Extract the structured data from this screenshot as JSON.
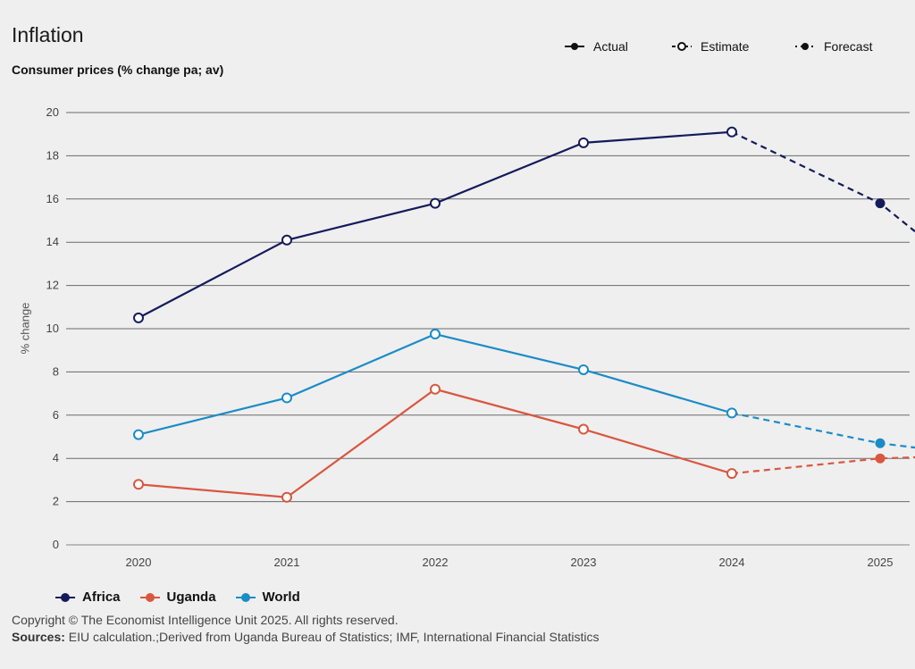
{
  "header": {
    "title": "Inflation",
    "subtitle": "Consumer prices (% change pa; av)"
  },
  "key": {
    "actual": "Actual",
    "estimate": "Estimate",
    "forecast": "Forecast"
  },
  "footer": {
    "copyright": "Copyright © The Economist Intelligence Unit 2025. All rights reserved.",
    "sources_label": "Sources:",
    "sources_text": " EIU calculation.;Derived from Uganda Bureau of Statistics; IMF, International Financial Statistics"
  },
  "chart_data": {
    "type": "line",
    "title": "Inflation",
    "subtitle": "Consumer prices (% change pa; av)",
    "xlabel": "",
    "ylabel": "% change",
    "ylim": [
      0,
      20
    ],
    "yticks": [
      0,
      2,
      4,
      6,
      8,
      10,
      12,
      14,
      16,
      18,
      20
    ],
    "categories": [
      "2020",
      "2021",
      "2022",
      "2023",
      "2024",
      "2025"
    ],
    "grid": true,
    "legend_position": "bottom-left",
    "point_status": [
      "estimate",
      "estimate",
      "estimate",
      "estimate",
      "estimate",
      "forecast"
    ],
    "series": [
      {
        "name": "Africa",
        "color": "#141b5c",
        "values": [
          10.5,
          14.1,
          15.8,
          18.6,
          19.1,
          15.8
        ],
        "trailing_value": 14.5
      },
      {
        "name": "Uganda",
        "color": "#d9573f",
        "values": [
          2.8,
          2.2,
          7.2,
          5.35,
          3.3,
          4.0
        ],
        "trailing_value": 4.05
      },
      {
        "name": "World",
        "color": "#1b8cc6",
        "values": [
          5.1,
          6.8,
          9.75,
          8.1,
          6.1,
          4.7
        ],
        "trailing_value": 4.5
      }
    ]
  }
}
